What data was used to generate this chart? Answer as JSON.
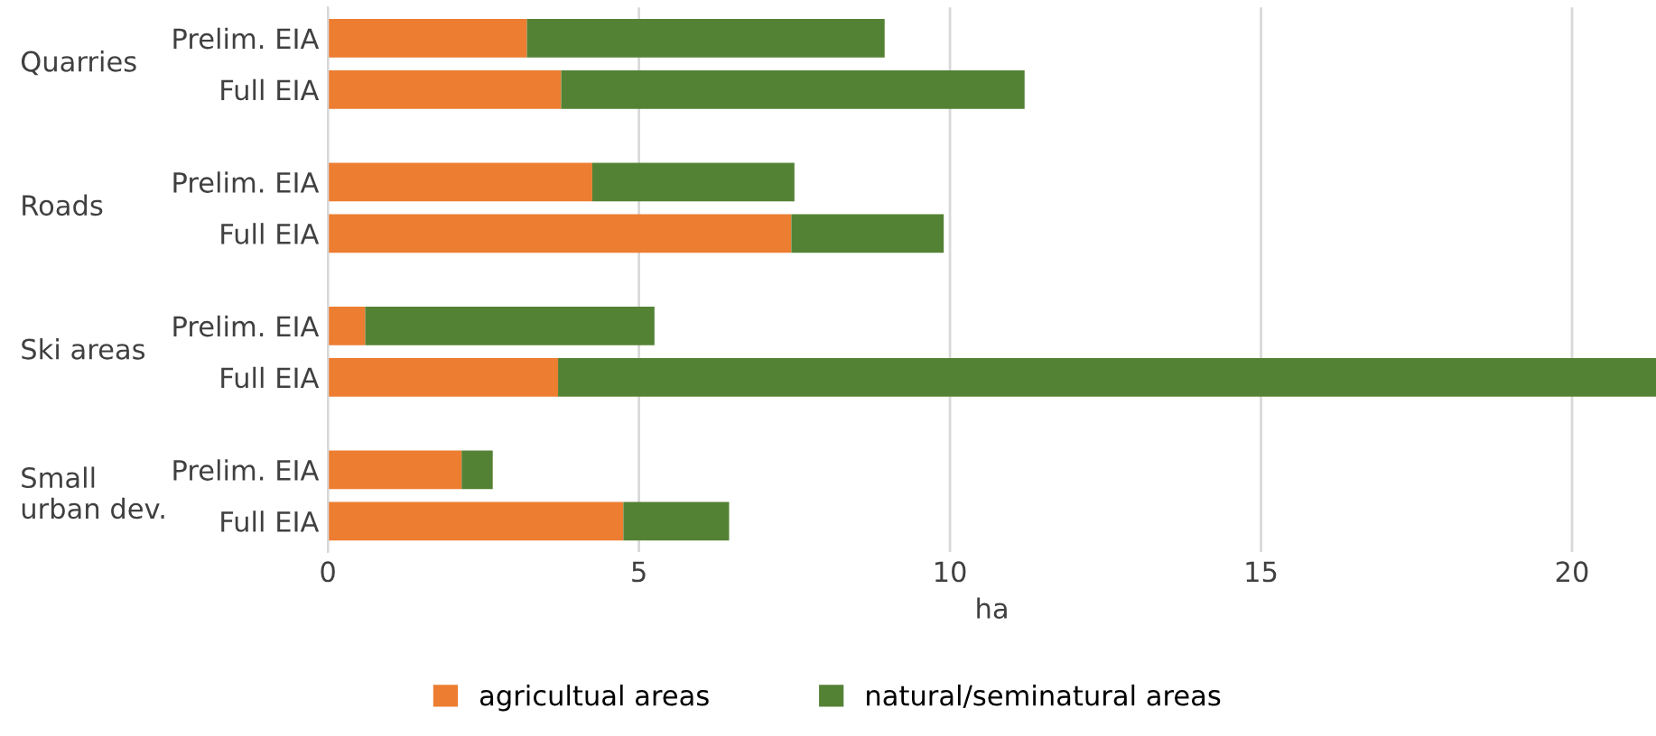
{
  "chart_data": {
    "type": "bar",
    "orientation": "horizontal",
    "stacked": true,
    "categories": [
      "Prelim. EIA",
      "Full EIA",
      "Prelim. EIA",
      "Full EIA",
      "Prelim. EIA",
      "Full EIA",
      "Prelim. EIA",
      "Full EIA"
    ],
    "series": [
      {
        "name": "agricultual areas",
        "color": "#ed7d31",
        "values": [
          3.2,
          3.75,
          4.25,
          7.45,
          0.6,
          3.7,
          2.15,
          4.75
        ]
      },
      {
        "name": "natural/seminatural areas",
        "color": "#548235",
        "values": [
          5.75,
          7.45,
          3.25,
          2.45,
          4.65,
          17.65,
          0.5,
          1.7
        ]
      }
    ],
    "annotations": [
      "Quarries",
      "Roads",
      "Ski areas",
      "Small\nurban dev."
    ],
    "xlabel": "ha",
    "xlim": [
      0,
      21.35
    ],
    "xticks": [
      0,
      5,
      10,
      15,
      20
    ],
    "grid": "x",
    "legend": "bottom"
  }
}
